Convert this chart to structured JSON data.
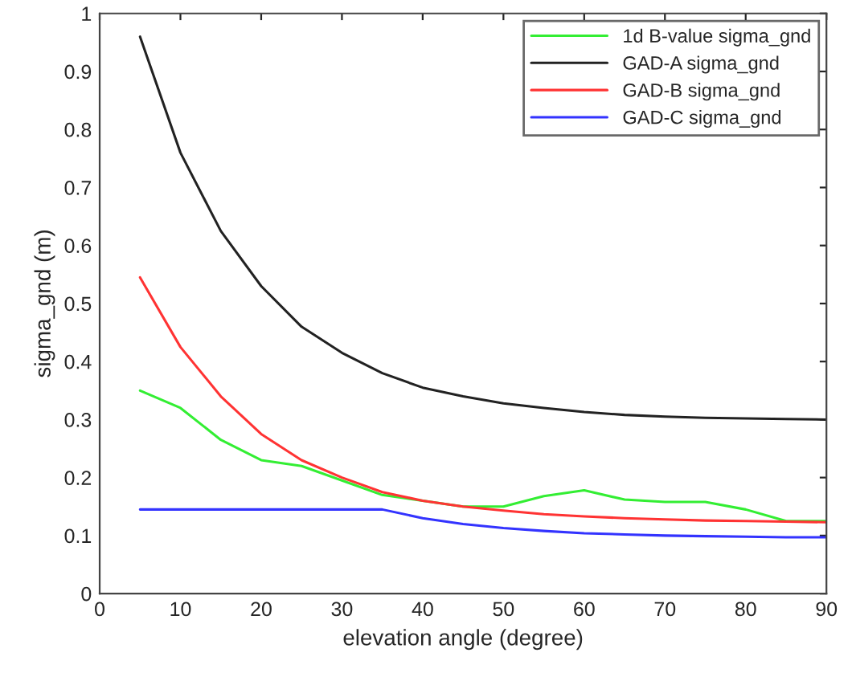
{
  "chart_data": {
    "type": "line",
    "xlabel": "elevation angle (degree)",
    "ylabel": "sigma_gnd (m)",
    "x": [
      5,
      10,
      15,
      20,
      25,
      30,
      35,
      40,
      45,
      50,
      55,
      60,
      65,
      70,
      75,
      80,
      85,
      90
    ],
    "series": [
      {
        "name": "1d B-value sigma_gnd",
        "color": "#33ee33",
        "values": [
          0.35,
          0.32,
          0.265,
          0.23,
          0.22,
          0.195,
          0.17,
          0.16,
          0.15,
          0.15,
          0.168,
          0.178,
          0.162,
          0.158,
          0.158,
          0.145,
          0.125,
          0.125
        ]
      },
      {
        "name": "GAD-A sigma_gnd",
        "color": "#222222",
        "values": [
          0.96,
          0.76,
          0.625,
          0.53,
          0.46,
          0.415,
          0.38,
          0.355,
          0.34,
          0.328,
          0.32,
          0.313,
          0.308,
          0.305,
          0.303,
          0.302,
          0.301,
          0.3
        ]
      },
      {
        "name": "GAD-B sigma_gnd",
        "color": "#ff3333",
        "values": [
          0.545,
          0.425,
          0.34,
          0.275,
          0.23,
          0.2,
          0.175,
          0.16,
          0.15,
          0.143,
          0.137,
          0.133,
          0.13,
          0.128,
          0.126,
          0.125,
          0.124,
          0.123
        ]
      },
      {
        "name": "GAD-C sigma_gnd",
        "color": "#3333ff",
        "values": [
          0.145,
          0.145,
          0.145,
          0.145,
          0.145,
          0.145,
          0.145,
          0.13,
          0.12,
          0.113,
          0.108,
          0.104,
          0.102,
          0.1,
          0.099,
          0.098,
          0.097,
          0.097
        ]
      }
    ],
    "xlim": [
      0,
      90
    ],
    "xticks": [
      0,
      10,
      20,
      30,
      40,
      50,
      60,
      70,
      80,
      90
    ],
    "ylim": [
      0,
      1
    ],
    "yticks": [
      0,
      0.1,
      0.2,
      0.3,
      0.4,
      0.5,
      0.6,
      0.7,
      0.8,
      0.9,
      {
        "value": 1,
        "label": "1"
      }
    ],
    "legend": "top right",
    "grid": false,
    "marker": "none",
    "line_style": "solid"
  }
}
